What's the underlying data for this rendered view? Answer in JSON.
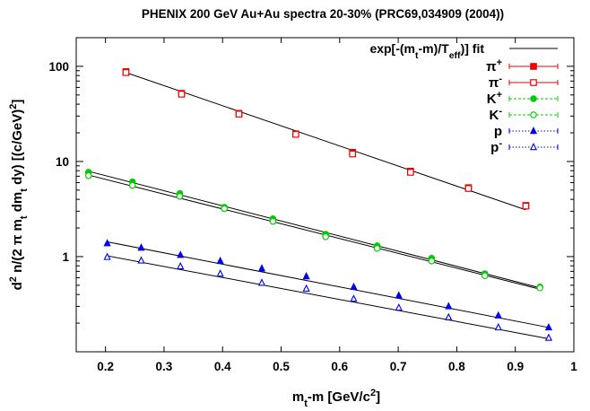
{
  "chart_data": {
    "type": "scatter",
    "title": "PHENIX 200 GeV Au+Au spectra 20-30% (PRC69,034909 (2004))",
    "xlabel": {
      "main": "m",
      "sub": "t",
      "rest": "-m [GeV/c",
      "sup": "2",
      "end": "]"
    },
    "ylabel": {
      "parts": [
        [
          "d",
          ""
        ],
        [
          "2",
          "sup"
        ],
        [
          " n/(2 π m",
          ""
        ],
        [
          "t",
          "sub"
        ],
        [
          " dm",
          ""
        ],
        [
          "t",
          "sub"
        ],
        [
          " dy) [(c/GeV)",
          ""
        ],
        [
          "2",
          "sup"
        ],
        [
          "]",
          ""
        ]
      ]
    },
    "x_scale": "linear",
    "y_scale": "log",
    "xlim": [
      0.15,
      1.0
    ],
    "ylim": [
      0.1,
      200
    ],
    "x_ticks": [
      0.2,
      0.3,
      0.4,
      0.5,
      0.6,
      0.7,
      0.8,
      0.9,
      1.0
    ],
    "x_tick_labels": [
      "0.2",
      "0.3",
      "0.4",
      "0.5",
      "0.6",
      "0.7",
      "0.8",
      "0.9",
      "1"
    ],
    "y_ticks": [
      1,
      10,
      100
    ],
    "y_tick_labels": [
      "1",
      "10",
      "100"
    ],
    "grid": false,
    "legend_position": "top-right",
    "fit_legend": {
      "pre": "exp[-(m",
      "sub1": "t",
      "mid": "-m)/T",
      "sub2": "eff",
      "post": ")] fit"
    },
    "fit_legend_text": "exp[-(mt-m)/Teff)] fit",
    "series": [
      {
        "name": "π+",
        "label_base": "π",
        "label_sup": "+",
        "color": "#ee0000",
        "marker": "square-filled",
        "line": "solid",
        "x": [
          0.235,
          0.33,
          0.428,
          0.525,
          0.622,
          0.721,
          0.82,
          0.918
        ],
        "y": [
          88,
          52,
          32,
          19.5,
          12.5,
          7.9,
          5.3,
          3.45
        ]
      },
      {
        "name": "π-",
        "label_base": "π",
        "label_sup": "-",
        "color": "#ee0000",
        "marker": "square-open",
        "line": "solid",
        "x": [
          0.235,
          0.33,
          0.428,
          0.525,
          0.622,
          0.721,
          0.82,
          0.918
        ],
        "y": [
          86,
          51,
          31.5,
          19.3,
          12.0,
          7.7,
          5.2,
          3.4
        ]
      },
      {
        "name": "K+",
        "label_base": "K",
        "label_sup": "+",
        "color": "#00cc00",
        "marker": "circle-filled",
        "line": "dashed",
        "x": [
          0.171,
          0.246,
          0.327,
          0.403,
          0.486,
          0.576,
          0.664,
          0.757,
          0.848,
          0.942
        ],
        "y": [
          7.7,
          6.1,
          4.6,
          3.3,
          2.5,
          1.72,
          1.3,
          0.96,
          0.66,
          0.48
        ]
      },
      {
        "name": "K-",
        "label_base": "K",
        "label_sup": "-",
        "color": "#00cc00",
        "marker": "circle-open",
        "line": "dashed",
        "x": [
          0.171,
          0.246,
          0.327,
          0.403,
          0.486,
          0.576,
          0.664,
          0.757,
          0.848,
          0.942
        ],
        "y": [
          7.1,
          5.6,
          4.3,
          3.2,
          2.35,
          1.62,
          1.22,
          0.9,
          0.63,
          0.47
        ]
      },
      {
        "name": "p",
        "label_base": "p",
        "label_sup": "",
        "color": "#0000ee",
        "marker": "triangle-filled",
        "line": "dotted",
        "x": [
          0.203,
          0.261,
          0.328,
          0.396,
          0.467,
          0.543,
          0.624,
          0.701,
          0.786,
          0.871,
          0.957
        ],
        "y": [
          1.38,
          1.24,
          1.04,
          0.9,
          0.75,
          0.62,
          0.48,
          0.39,
          0.3,
          0.24,
          0.18
        ]
      },
      {
        "name": "p-",
        "label_base": "p",
        "label_sup": "-",
        "color": "#0000ee",
        "marker": "triangle-open",
        "line": "dotted",
        "x": [
          0.203,
          0.261,
          0.328,
          0.396,
          0.467,
          0.543,
          0.624,
          0.701,
          0.786,
          0.871,
          0.957
        ],
        "y": [
          0.99,
          0.91,
          0.79,
          0.66,
          0.53,
          0.46,
          0.36,
          0.29,
          0.23,
          0.18,
          0.14
        ]
      }
    ],
    "fits": [
      {
        "x": [
          0.235,
          0.918
        ],
        "y": [
          86,
          3.1
        ]
      },
      {
        "x": [
          0.171,
          0.942
        ],
        "y": [
          7.9,
          0.47
        ]
      },
      {
        "x": [
          0.171,
          0.942
        ],
        "y": [
          7.2,
          0.455
        ]
      },
      {
        "x": [
          0.203,
          0.957
        ],
        "y": [
          1.43,
          0.18
        ]
      },
      {
        "x": [
          0.203,
          0.957
        ],
        "y": [
          1.02,
          0.137
        ]
      }
    ]
  }
}
